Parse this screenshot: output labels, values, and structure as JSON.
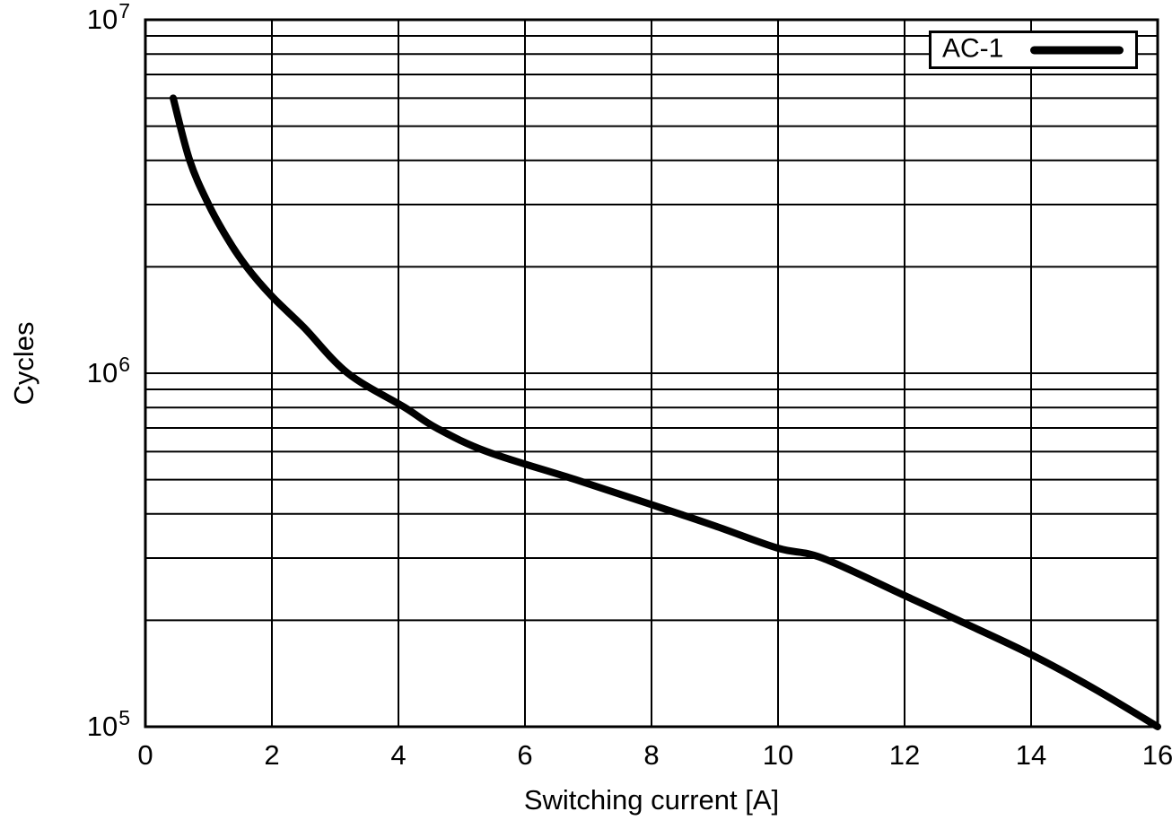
{
  "chart_data": {
    "type": "line",
    "title": "",
    "xlabel": "Switching current [A]",
    "ylabel": "Cycles",
    "grid": true,
    "x_axis": {
      "scale": "linear",
      "min": 0,
      "max": 16,
      "ticks": [
        0,
        2,
        4,
        6,
        8,
        10,
        12,
        14,
        16
      ],
      "gridline_step": 2
    },
    "y_axis": {
      "scale": "log",
      "min": 100000,
      "max": 10000000,
      "ticks": [
        {
          "value": 100000,
          "base": "10",
          "exp": "5"
        },
        {
          "value": 1000000,
          "base": "10",
          "exp": "6"
        },
        {
          "value": 10000000,
          "base": "10",
          "exp": "7"
        }
      ],
      "minor_gridlines": "multiples 2-9 of each decade"
    },
    "legend": {
      "position": "top-right",
      "entries": [
        {
          "label": "AC-1",
          "color": "#000000",
          "line_width": 9
        }
      ]
    },
    "series": [
      {
        "name": "AC-1",
        "color": "#000000",
        "width": 8,
        "points": [
          [
            0.44,
            6000000
          ],
          [
            0.7,
            4000000
          ],
          [
            1.0,
            3000000
          ],
          [
            1.3,
            2400000
          ],
          [
            1.6,
            2000000
          ],
          [
            2.0,
            1650000
          ],
          [
            2.5,
            1350000
          ],
          [
            3.2,
            1000000
          ],
          [
            4.1,
            800000
          ],
          [
            4.6,
            700000
          ],
          [
            5.4,
            600000
          ],
          [
            6.8,
            500000
          ],
          [
            8.0,
            425000
          ],
          [
            9.0,
            370000
          ],
          [
            10.0,
            320000
          ],
          [
            10.7,
            300000
          ],
          [
            12.0,
            235000
          ],
          [
            12.85,
            200000
          ],
          [
            14.0,
            160000
          ],
          [
            15.0,
            128000
          ],
          [
            16.0,
            100000
          ]
        ]
      }
    ],
    "colors": {
      "ink": "#000000",
      "background": "#ffffff"
    }
  }
}
